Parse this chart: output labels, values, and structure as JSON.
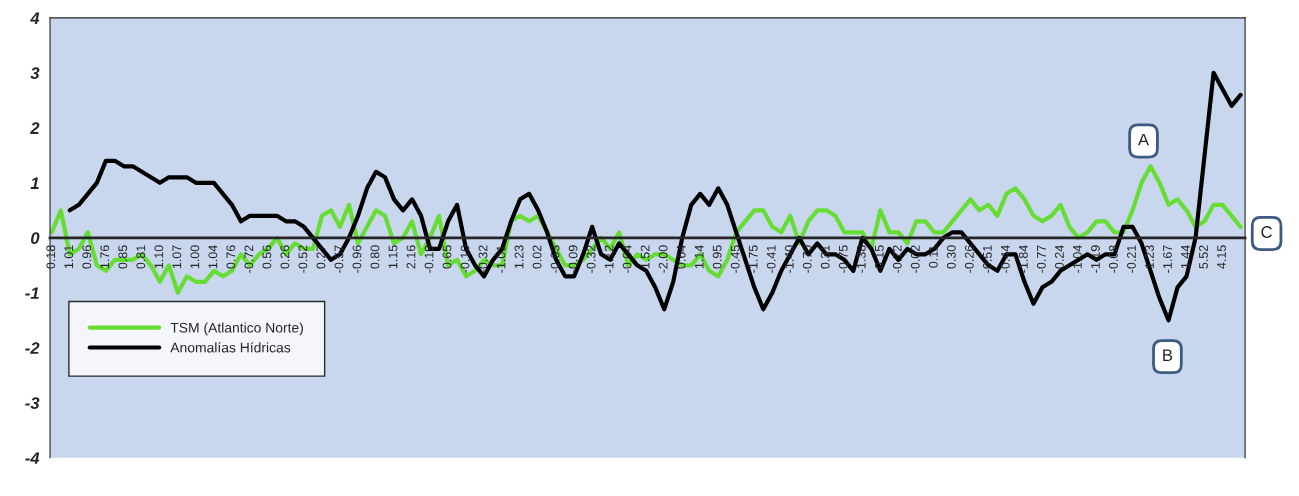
{
  "chart_data": {
    "type": "line",
    "categories": [
      "0.18",
      null,
      "1.01",
      null,
      "0.96",
      null,
      "1.76",
      null,
      "0.85",
      null,
      "0.81",
      null,
      "1.10",
      null,
      "1.07",
      null,
      "1.00",
      null,
      "1.04",
      null,
      "0.76",
      null,
      "-0.72",
      null,
      "0.56",
      null,
      "0.26",
      null,
      "-0.52",
      null,
      "0.27",
      null,
      "-0.57",
      null,
      "-0.96",
      null,
      "0.80",
      null,
      "1.15",
      null,
      "2.16",
      null,
      "-0.19",
      null,
      "0.65",
      null,
      "-0.10",
      null,
      "-0.32",
      null,
      "-1.01",
      null,
      "1.23",
      null,
      "0.02",
      null,
      "-0.63",
      null,
      "-0.09",
      null,
      "-0.32",
      null,
      "-1.12",
      null,
      "-0.04",
      null,
      "-1.52",
      null,
      "-2.00",
      null,
      "0.64",
      null,
      "1.14",
      null,
      "0.95",
      null,
      "-0.45",
      null,
      "-1.75",
      null,
      "-0.41",
      null,
      "-1.40",
      null,
      "-0.70",
      null,
      "0.31",
      null,
      "-0.75",
      null,
      "-1.38",
      null,
      "-0.15",
      null,
      "-0.72",
      null,
      "-0.02",
      null,
      "0.11",
      null,
      "0.30",
      null,
      "-0.26",
      null,
      "-0.51",
      null,
      "-0.44",
      null,
      "-1.84",
      null,
      "-0.77",
      null,
      "0.24",
      null,
      "-1.04",
      null,
      "-1.19",
      null,
      "-0.08",
      null,
      "-0.21",
      null,
      "1.23",
      null,
      "-1.67",
      null,
      "-1.44",
      null,
      "5.52",
      null,
      "4.15",
      null,
      null
    ],
    "ylim": [
      -4,
      4
    ],
    "yticks": [
      -4,
      -3,
      -2,
      -1,
      0,
      1,
      2,
      3,
      4
    ],
    "legend": "bottom left",
    "grid": false,
    "series": [
      {
        "name": "TSM (Atlantico Norte)",
        "color": "#66dd33",
        "values": [
          0.1,
          0.5,
          -0.3,
          -0.2,
          0.1,
          -0.5,
          -0.6,
          -0.4,
          -0.4,
          -0.4,
          -0.3,
          -0.5,
          -0.8,
          -0.5,
          -1.0,
          -0.7,
          -0.8,
          -0.8,
          -0.6,
          -0.7,
          -0.6,
          -0.3,
          -0.5,
          -0.3,
          -0.2,
          0.0,
          -0.3,
          -0.1,
          -0.2,
          -0.2,
          0.4,
          0.5,
          0.2,
          0.6,
          -0.1,
          0.2,
          0.5,
          0.4,
          -0.1,
          0.0,
          0.3,
          -0.3,
          0.0,
          0.4,
          -0.5,
          -0.4,
          -0.7,
          -0.6,
          -0.4,
          -0.5,
          -0.5,
          0.3,
          0.4,
          0.3,
          0.4,
          0.1,
          -0.2,
          -0.5,
          -0.5,
          -0.4,
          -0.2,
          0.0,
          -0.2,
          0.1,
          -0.5,
          -0.3,
          -0.4,
          -0.3,
          -0.3,
          -0.4,
          -0.5,
          -0.5,
          -0.3,
          -0.6,
          -0.7,
          -0.4,
          0.1,
          0.3,
          0.5,
          0.5,
          0.2,
          0.1,
          0.4,
          -0.1,
          0.3,
          0.5,
          0.5,
          0.4,
          0.1,
          0.1,
          0.1,
          -0.2,
          0.5,
          0.1,
          0.1,
          -0.1,
          0.3,
          0.3,
          0.1,
          0.1,
          0.3,
          0.5,
          0.7,
          0.5,
          0.6,
          0.4,
          0.8,
          0.9,
          0.7,
          0.4,
          0.3,
          0.4,
          0.6,
          0.2,
          0.0,
          0.1,
          0.3,
          0.3,
          0.1,
          0.1,
          0.5,
          1.0,
          1.3,
          1.0,
          0.6,
          0.7,
          0.5,
          0.2,
          0.3,
          0.6,
          0.6,
          0.4,
          0.2
        ]
      },
      {
        "name": "Anomalías Hídricas",
        "color": "#000000",
        "values": [
          null,
          null,
          0.5,
          0.6,
          0.8,
          1.0,
          1.4,
          1.4,
          1.3,
          1.3,
          1.2,
          1.1,
          1.0,
          1.1,
          1.1,
          1.1,
          1.0,
          1.0,
          1.0,
          0.8,
          0.6,
          0.3,
          0.4,
          0.4,
          0.4,
          0.4,
          0.3,
          0.3,
          0.2,
          0.0,
          -0.2,
          -0.4,
          -0.3,
          0.0,
          0.4,
          0.9,
          1.2,
          1.1,
          0.7,
          0.5,
          0.7,
          0.4,
          -0.2,
          -0.2,
          0.3,
          0.6,
          -0.2,
          -0.5,
          -0.7,
          -0.4,
          -0.2,
          0.3,
          0.7,
          0.8,
          0.5,
          0.1,
          -0.4,
          -0.7,
          -0.7,
          -0.3,
          0.2,
          -0.3,
          -0.4,
          -0.1,
          -0.3,
          -0.5,
          -0.6,
          -0.9,
          -1.3,
          -0.8,
          0.0,
          0.6,
          0.8,
          0.6,
          0.9,
          0.6,
          0.1,
          -0.4,
          -0.9,
          -1.3,
          -1.0,
          -0.6,
          -0.3,
          0.0,
          -0.3,
          -0.1,
          -0.3,
          -0.3,
          -0.4,
          -0.6,
          0.0,
          -0.2,
          -0.6,
          -0.2,
          -0.4,
          -0.2,
          -0.3,
          -0.3,
          -0.2,
          0.0,
          0.1,
          0.1,
          -0.1,
          -0.3,
          -0.5,
          -0.6,
          -0.3,
          -0.3,
          -0.8,
          -1.2,
          -0.9,
          -0.8,
          -0.6,
          -0.5,
          -0.4,
          -0.3,
          -0.4,
          -0.3,
          -0.3,
          0.2,
          0.2,
          -0.1,
          -0.6,
          -1.1,
          -1.5,
          -0.9,
          -0.7,
          0.0,
          1.5,
          3.0,
          2.7,
          2.4,
          2.6
        ]
      }
    ],
    "annotations": [
      "A",
      "B",
      "C"
    ]
  }
}
